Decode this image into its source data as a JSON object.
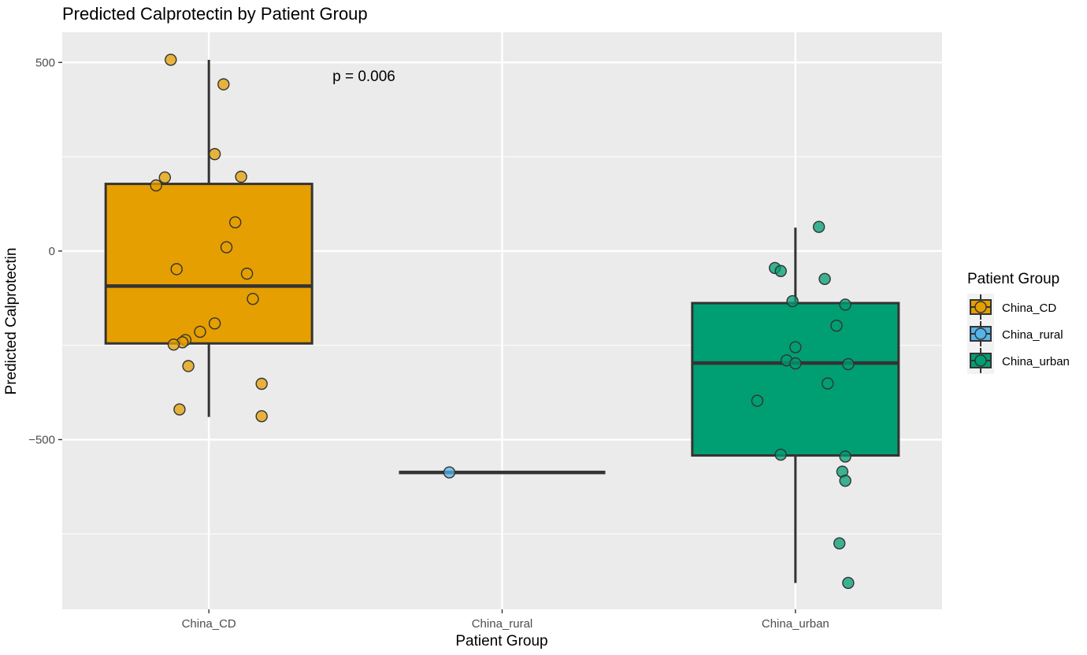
{
  "chart_data": {
    "type": "box",
    "title": "Predicted Calprotectin by Patient Group",
    "xlabel": "Patient Group",
    "ylabel": "Predicted Calprotectin",
    "ylim": [
      -950,
      580
    ],
    "yticks": [
      -500,
      0,
      500
    ],
    "ytick_labels": [
      "−500",
      "0",
      "500"
    ],
    "grid": true,
    "legend_title": "Patient Group",
    "legend_position": "right",
    "annotation": "p = 0.006",
    "categories": [
      "China_CD",
      "China_rural",
      "China_urban"
    ],
    "groups": [
      {
        "name": "China_CD",
        "color": "#E69F00",
        "box": {
          "q1": -245,
          "median": -93,
          "q3": 178,
          "whisker_low": -440,
          "whisker_high": 507
        },
        "points": [
          {
            "x": -0.13,
            "y": 507
          },
          {
            "x": 0.05,
            "y": 442
          },
          {
            "x": 0.02,
            "y": 257
          },
          {
            "x": -0.15,
            "y": 195
          },
          {
            "x": 0.11,
            "y": 197
          },
          {
            "x": -0.18,
            "y": 174
          },
          {
            "x": 0.09,
            "y": 76
          },
          {
            "x": 0.06,
            "y": 10
          },
          {
            "x": -0.11,
            "y": -48
          },
          {
            "x": 0.13,
            "y": -60
          },
          {
            "x": 0.15,
            "y": -127
          },
          {
            "x": 0.02,
            "y": -192
          },
          {
            "x": -0.03,
            "y": -214
          },
          {
            "x": -0.08,
            "y": -236
          },
          {
            "x": -0.09,
            "y": -242
          },
          {
            "x": -0.12,
            "y": -248
          },
          {
            "x": -0.07,
            "y": -305
          },
          {
            "x": 0.18,
            "y": -352
          },
          {
            "x": -0.1,
            "y": -420
          },
          {
            "x": 0.18,
            "y": -438
          }
        ]
      },
      {
        "name": "China_rural",
        "color": "#56B4E9",
        "box": {
          "q1": -587,
          "median": -587,
          "q3": -587,
          "whisker_low": -587,
          "whisker_high": -587
        },
        "points": [
          {
            "x": -0.18,
            "y": -587
          }
        ]
      },
      {
        "name": "China_urban",
        "color": "#009E73",
        "box": {
          "q1": -542,
          "median": -297,
          "q3": -138,
          "whisker_low": -880,
          "whisker_high": 62
        },
        "points": [
          {
            "x": 0.08,
            "y": 64
          },
          {
            "x": -0.07,
            "y": -45
          },
          {
            "x": -0.05,
            "y": -53
          },
          {
            "x": 0.1,
            "y": -74
          },
          {
            "x": -0.01,
            "y": -133
          },
          {
            "x": 0.17,
            "y": -142
          },
          {
            "x": 0.14,
            "y": -198
          },
          {
            "x": 0.0,
            "y": -255
          },
          {
            "x": -0.03,
            "y": -290
          },
          {
            "x": 0.0,
            "y": -298
          },
          {
            "x": 0.18,
            "y": -300
          },
          {
            "x": 0.11,
            "y": -351
          },
          {
            "x": -0.13,
            "y": -397
          },
          {
            "x": -0.05,
            "y": -540
          },
          {
            "x": 0.17,
            "y": -545
          },
          {
            "x": 0.16,
            "y": -585
          },
          {
            "x": 0.17,
            "y": -609
          },
          {
            "x": 0.15,
            "y": -775
          },
          {
            "x": 0.18,
            "y": -880
          }
        ]
      }
    ]
  }
}
